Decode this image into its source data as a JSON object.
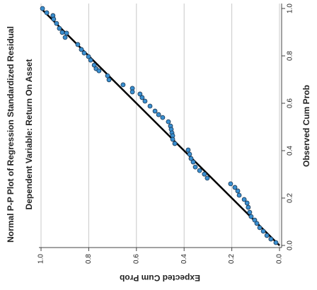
{
  "chart_data": {
    "type": "scatter",
    "title": "Normal P-P Plot of Regression Standardized Residual",
    "subtitle": "Dependent Variable: Return On Asset",
    "x_label": "Observed Cum Prob",
    "y_label": "Expected Cum Prob",
    "color": "#3a8fd0",
    "xlim": [
      0,
      1
    ],
    "ylim": [
      0,
      1
    ],
    "xticks": [
      {
        "value": 0,
        "label": "0.0"
      },
      {
        "value": 0.2,
        "label": "0.2"
      },
      {
        "value": 0.4,
        "label": "0.4"
      },
      {
        "value": 0.6,
        "label": "0.6"
      },
      {
        "value": 0.8,
        "label": "0.8"
      },
      {
        "value": 1,
        "label": "1.0"
      }
    ],
    "yticks": [
      {
        "value": 0,
        "label": "0.0"
      },
      {
        "value": 0.2,
        "label": "0.2"
      },
      {
        "value": 0.4,
        "label": "0.4"
      },
      {
        "value": 0.6,
        "label": "0.6"
      },
      {
        "value": 0.8,
        "label": "0.8"
      },
      {
        "value": 1,
        "label": "1.0"
      }
    ],
    "grid": true,
    "x": [
      1.0,
      0.982,
      0.97,
      0.955,
      0.937,
      0.916,
      0.899,
      0.878,
      0.896,
      0.848,
      0.827,
      0.812,
      0.797,
      0.782,
      0.761,
      0.746,
      0.737,
      0.716,
      0.699,
      0.678,
      0.663,
      0.648,
      0.639,
      0.624,
      0.609,
      0.588,
      0.567,
      0.552,
      0.54,
      0.522,
      0.504,
      0.49,
      0.475,
      0.463,
      0.448,
      0.43,
      0.403,
      0.385,
      0.367,
      0.352,
      0.331,
      0.316,
      0.301,
      0.284,
      0.26,
      0.245,
      0.23,
      0.212,
      0.194,
      0.179,
      0.161,
      0.14,
      0.122,
      0.107,
      0.093,
      0.075,
      0.06,
      0.042,
      0.027,
      0.012
    ],
    "values": [
      0.994,
      0.976,
      0.95,
      0.947,
      0.935,
      0.923,
      0.911,
      0.899,
      0.893,
      0.846,
      0.831,
      0.819,
      0.801,
      0.792,
      0.777,
      0.769,
      0.757,
      0.721,
      0.715,
      0.656,
      0.617,
      0.617,
      0.585,
      0.576,
      0.564,
      0.543,
      0.522,
      0.507,
      0.49,
      0.466,
      0.457,
      0.454,
      0.451,
      0.448,
      0.448,
      0.439,
      0.383,
      0.377,
      0.371,
      0.362,
      0.353,
      0.335,
      0.315,
      0.303,
      0.205,
      0.187,
      0.175,
      0.169,
      0.148,
      0.136,
      0.131,
      0.125,
      0.119,
      0.104,
      0.095,
      0.083,
      0.068,
      0.053,
      0.036,
      0.015
    ]
  }
}
